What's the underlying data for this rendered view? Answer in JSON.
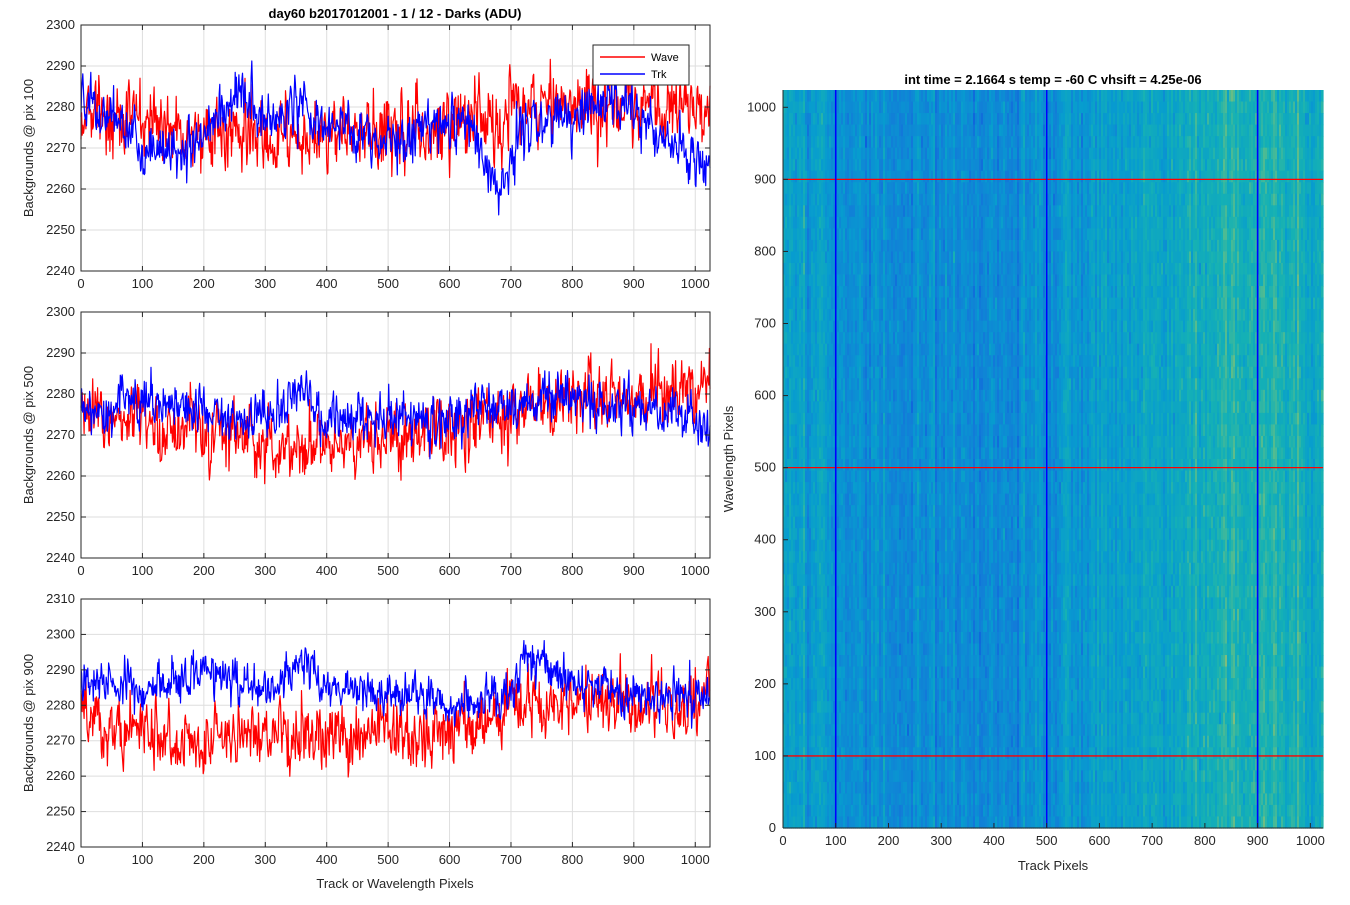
{
  "figure": {
    "background": "#ffffff",
    "grid_color": "#dedede",
    "axis_color": "#262626"
  },
  "chart_data": [
    {
      "type": "line",
      "title": "day60 b2017012001 - 1 / 12 - Darks (ADU)",
      "xlabel": "",
      "ylabel": "Backgrounds @ pix 100",
      "xlim": [
        0,
        1024
      ],
      "ylim": [
        2240,
        2300
      ],
      "xticks": [
        0,
        100,
        200,
        300,
        400,
        500,
        600,
        700,
        800,
        900,
        1000
      ],
      "yticks": [
        2240,
        2250,
        2260,
        2270,
        2280,
        2290,
        2300
      ],
      "grid": true,
      "legend": {
        "location": "top-right",
        "entries": [
          "Wave",
          "Trk"
        ]
      },
      "series": [
        {
          "name": "Wave",
          "color": "#ff0000",
          "mean": 2276,
          "noise": 6.5,
          "trend": [
            [
              0,
              2279
            ],
            [
              100,
              2276
            ],
            [
              200,
              2274
            ],
            [
              300,
              2272
            ],
            [
              400,
              2273
            ],
            [
              500,
              2274
            ],
            [
              600,
              2276
            ],
            [
              700,
              2279
            ],
            [
              800,
              2281
            ],
            [
              900,
              2281
            ],
            [
              1024,
              2280
            ]
          ]
        },
        {
          "name": "Trk",
          "color": "#0000ff",
          "mean": 2275,
          "noise": 4.5,
          "trend": [
            [
              0,
              2282
            ],
            [
              60,
              2276
            ],
            [
              120,
              2268
            ],
            [
              200,
              2272
            ],
            [
              260,
              2285
            ],
            [
              300,
              2276
            ],
            [
              360,
              2280
            ],
            [
              420,
              2275
            ],
            [
              500,
              2270
            ],
            [
              560,
              2276
            ],
            [
              640,
              2275
            ],
            [
              680,
              2258
            ],
            [
              720,
              2275
            ],
            [
              800,
              2278
            ],
            [
              880,
              2282
            ],
            [
              960,
              2272
            ],
            [
              1024,
              2265
            ]
          ]
        }
      ]
    },
    {
      "type": "line",
      "title": "",
      "xlabel": "",
      "ylabel": "Backgrounds @ pix 500",
      "xlim": [
        0,
        1024
      ],
      "ylim": [
        2240,
        2300
      ],
      "xticks": [
        0,
        100,
        200,
        300,
        400,
        500,
        600,
        700,
        800,
        900,
        1000
      ],
      "yticks": [
        2240,
        2250,
        2260,
        2270,
        2280,
        2290,
        2300
      ],
      "grid": true,
      "series": [
        {
          "name": "Wave",
          "color": "#ff0000",
          "mean": 2272,
          "noise": 6,
          "trend": [
            [
              0,
              2275
            ],
            [
              200,
              2271
            ],
            [
              300,
              2268
            ],
            [
              400,
              2267
            ],
            [
              500,
              2269
            ],
            [
              600,
              2272
            ],
            [
              700,
              2276
            ],
            [
              800,
              2279
            ],
            [
              900,
              2280
            ],
            [
              1024,
              2282
            ]
          ]
        },
        {
          "name": "Trk",
          "color": "#0000ff",
          "mean": 2276,
          "noise": 4.5,
          "trend": [
            [
              0,
              2275
            ],
            [
              100,
              2279
            ],
            [
              200,
              2275
            ],
            [
              300,
              2274
            ],
            [
              360,
              2281
            ],
            [
              400,
              2273
            ],
            [
              500,
              2274
            ],
            [
              600,
              2274
            ],
            [
              700,
              2277
            ],
            [
              800,
              2279
            ],
            [
              900,
              2277
            ],
            [
              1024,
              2273
            ]
          ]
        }
      ]
    },
    {
      "type": "line",
      "title": "",
      "xlabel": "Track or Wavelength Pixels",
      "ylabel": "Backgrounds @ pix 900",
      "xlim": [
        0,
        1024
      ],
      "ylim": [
        2240,
        2310
      ],
      "xticks": [
        0,
        100,
        200,
        300,
        400,
        500,
        600,
        700,
        800,
        900,
        1000
      ],
      "yticks": [
        2240,
        2250,
        2260,
        2270,
        2280,
        2290,
        2300,
        2310
      ],
      "grid": true,
      "series": [
        {
          "name": "Wave",
          "color": "#ff0000",
          "mean": 2274,
          "noise": 6.5,
          "trend": [
            [
              0,
              2276
            ],
            [
              100,
              2272
            ],
            [
              200,
              2270
            ],
            [
              300,
              2271
            ],
            [
              400,
              2270
            ],
            [
              500,
              2271
            ],
            [
              600,
              2273
            ],
            [
              700,
              2278
            ],
            [
              800,
              2280
            ],
            [
              900,
              2280
            ],
            [
              1024,
              2281
            ]
          ]
        },
        {
          "name": "Trk",
          "color": "#0000ff",
          "mean": 2284,
          "noise": 4.5,
          "trend": [
            [
              0,
              2286
            ],
            [
              100,
              2284
            ],
            [
              200,
              2290
            ],
            [
              300,
              2284
            ],
            [
              360,
              2292
            ],
            [
              400,
              2284
            ],
            [
              500,
              2283
            ],
            [
              600,
              2280
            ],
            [
              700,
              2282
            ],
            [
              720,
              2294
            ],
            [
              800,
              2287
            ],
            [
              900,
              2282
            ],
            [
              1024,
              2283
            ]
          ]
        }
      ]
    },
    {
      "type": "heatmap",
      "title": "int time = 2.1664 s    temp = -60 C    vhsift = 4.25e-06",
      "xlabel": "Track Pixels",
      "ylabel": "Wavelength Pixels",
      "xlim": [
        0,
        1024
      ],
      "ylim": [
        0,
        1024
      ],
      "xticks": [
        0,
        100,
        200,
        300,
        400,
        500,
        600,
        700,
        800,
        900,
        1000
      ],
      "yticks": [
        0,
        100,
        200,
        300,
        400,
        500,
        600,
        700,
        800,
        900,
        1000
      ],
      "colormap": "parula",
      "color_profile": [
        [
          0,
          0.52
        ],
        [
          100,
          0.42
        ],
        [
          300,
          0.36
        ],
        [
          500,
          0.4
        ],
        [
          700,
          0.5
        ],
        [
          850,
          0.62
        ],
        [
          1024,
          0.55
        ]
      ],
      "vertical_markers": {
        "positions": [
          100,
          500,
          900
        ],
        "color": "#0000ff"
      },
      "horizontal_markers": {
        "positions": [
          100,
          500,
          900
        ],
        "color": "#ff0000"
      }
    }
  ]
}
